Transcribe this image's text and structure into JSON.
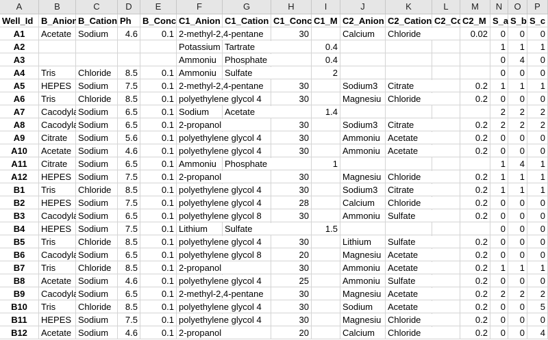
{
  "columns": [
    "A",
    "B",
    "C",
    "D",
    "E",
    "F",
    "G",
    "H",
    "I",
    "J",
    "K",
    "L",
    "M",
    "N",
    "O",
    "P"
  ],
  "table": {
    "header": [
      "Well_Id",
      "B_Anion",
      "B_Cation",
      "Ph",
      "B_Conc",
      "C1_Anion",
      "C1_Cation",
      "C1_Conc",
      "C1_M",
      "C2_Anion",
      "C2_Cation",
      "C2_Co",
      "C2_M",
      "S_a",
      "S_b",
      "S_c"
    ],
    "rows": [
      [
        "A1",
        "Acetate",
        "Sodium",
        4.6,
        0.1,
        "2-methyl-2,4-pentane",
        null,
        30,
        null,
        "Calcium",
        "Chloride",
        null,
        0.02,
        0,
        0,
        0
      ],
      [
        "A2",
        null,
        null,
        null,
        null,
        "Potassium",
        "Tartrate",
        null,
        0.4,
        null,
        null,
        null,
        null,
        1,
        1,
        1
      ],
      [
        "A3",
        null,
        null,
        null,
        null,
        "Ammoniu",
        "Phosphate",
        null,
        0.4,
        null,
        null,
        null,
        null,
        0,
        4,
        0
      ],
      [
        "A4",
        "Tris",
        "Chloride",
        8.5,
        0.1,
        "Ammoniu",
        "Sulfate",
        null,
        2,
        null,
        null,
        null,
        null,
        0,
        0,
        0
      ],
      [
        "A5",
        "HEPES",
        "Sodium",
        7.5,
        0.1,
        "2-methyl-2,4-pentane",
        null,
        30,
        null,
        "Sodium3",
        "Citrate",
        null,
        0.2,
        1,
        1,
        1
      ],
      [
        "A6",
        "Tris",
        "Chloride",
        8.5,
        0.1,
        "polyethylene glycol 4",
        null,
        30,
        null,
        "Magnesiu",
        "Chloride",
        null,
        0.2,
        0,
        0,
        0
      ],
      [
        "A7",
        "Cacodyla",
        "Sodium",
        6.5,
        0.1,
        "Sodium",
        "Acetate",
        null,
        1.4,
        null,
        null,
        null,
        null,
        2,
        2,
        2
      ],
      [
        "A8",
        "Cacodyla",
        "Sodium",
        6.5,
        0.1,
        "2-propanol",
        null,
        30,
        null,
        "Sodium3",
        "Citrate",
        null,
        0.2,
        2,
        2,
        2
      ],
      [
        "A9",
        "Citrate",
        "Sodium",
        5.6,
        0.1,
        "polyethylene glycol 4",
        null,
        30,
        null,
        "Ammoniu",
        "Acetate",
        null,
        0.2,
        0,
        0,
        0
      ],
      [
        "A10",
        "Acetate",
        "Sodium",
        4.6,
        0.1,
        "polyethylene glycol 4",
        null,
        30,
        null,
        "Ammoniu",
        "Acetate",
        null,
        0.2,
        0,
        0,
        0
      ],
      [
        "A11",
        "Citrate",
        "Sodium",
        6.5,
        0.1,
        "Ammoniu",
        "Phosphate",
        null,
        1,
        null,
        null,
        null,
        null,
        1,
        4,
        1
      ],
      [
        "A12",
        "HEPES",
        "Sodium",
        7.5,
        0.1,
        "2-propanol",
        null,
        30,
        null,
        "Magnesiu",
        "Chloride",
        null,
        0.2,
        1,
        1,
        1
      ],
      [
        "B1",
        "Tris",
        "Chloride",
        8.5,
        0.1,
        "polyethylene glycol 4",
        null,
        30,
        null,
        "Sodium3",
        "Citrate",
        null,
        0.2,
        1,
        1,
        1
      ],
      [
        "B2",
        "HEPES",
        "Sodium",
        7.5,
        0.1,
        "polyethylene glycol 4",
        null,
        28,
        null,
        "Calcium",
        "Chloride",
        null,
        0.2,
        0,
        0,
        0
      ],
      [
        "B3",
        "Cacodyla",
        "Sodium",
        6.5,
        0.1,
        "polyethylene glycol 8",
        null,
        30,
        null,
        "Ammoniu",
        "Sulfate",
        null,
        0.2,
        0,
        0,
        0
      ],
      [
        "B4",
        "HEPES",
        "Sodium",
        7.5,
        0.1,
        "Lithium",
        "Sulfate",
        null,
        1.5,
        null,
        null,
        null,
        null,
        0,
        0,
        0
      ],
      [
        "B5",
        "Tris",
        "Chloride",
        8.5,
        0.1,
        "polyethylene glycol 4",
        null,
        30,
        null,
        "Lithium",
        "Sulfate",
        null,
        0.2,
        0,
        0,
        0
      ],
      [
        "B6",
        "Cacodyla",
        "Sodium",
        6.5,
        0.1,
        "polyethylene glycol 8",
        null,
        20,
        null,
        "Magnesiu",
        "Acetate",
        null,
        0.2,
        0,
        0,
        0
      ],
      [
        "B7",
        "Tris",
        "Chloride",
        8.5,
        0.1,
        "2-propanol",
        null,
        30,
        null,
        "Ammoniu",
        "Acetate",
        null,
        0.2,
        1,
        1,
        1
      ],
      [
        "B8",
        "Acetate",
        "Sodium",
        4.6,
        0.1,
        "polyethylene glycol 4",
        null,
        25,
        null,
        "Ammoniu",
        "Sulfate",
        null,
        0.2,
        0,
        0,
        0
      ],
      [
        "B9",
        "Cacodyla",
        "Sodium",
        6.5,
        0.1,
        "2-methyl-2,4-pentane",
        null,
        30,
        null,
        "Magnesiu",
        "Acetate",
        null,
        0.2,
        2,
        2,
        2
      ],
      [
        "B10",
        "Tris",
        "Chloride",
        8.5,
        0.1,
        "polyethylene glycol 4",
        null,
        30,
        null,
        "Sodium",
        "Acetate",
        null,
        0.2,
        0,
        0,
        5
      ],
      [
        "B11",
        "HEPES",
        "Sodium",
        7.5,
        0.1,
        "polyethylene glycol 4",
        null,
        30,
        null,
        "Magnesiu",
        "Chloride",
        null,
        0.2,
        0,
        0,
        0
      ],
      [
        "B12",
        "Acetate",
        "Sodium",
        4.6,
        0.1,
        "2-propanol",
        null,
        20,
        null,
        "Calcium",
        "Chloride",
        null,
        0.2,
        0,
        0,
        4
      ]
    ]
  }
}
